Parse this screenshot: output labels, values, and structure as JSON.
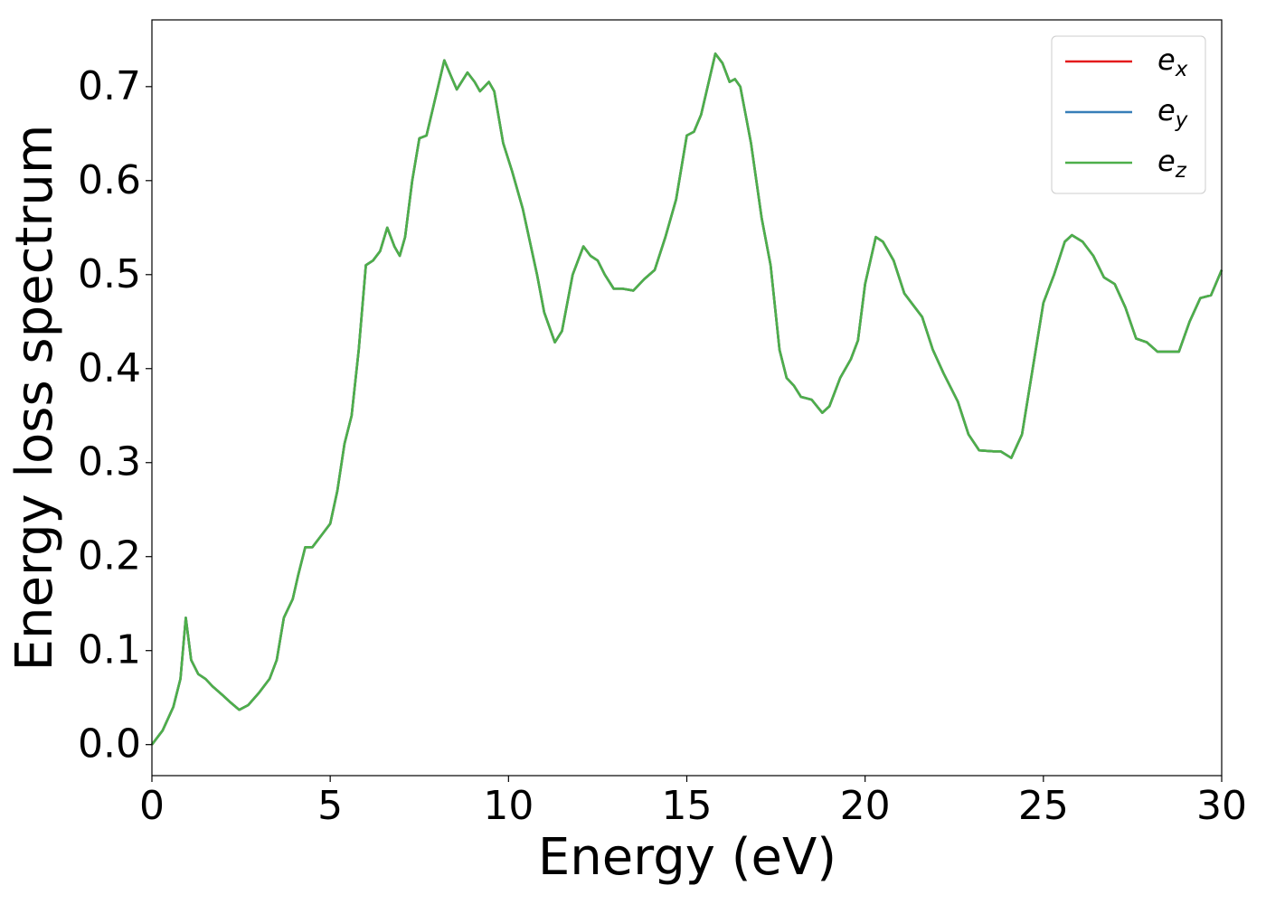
{
  "chart_data": {
    "type": "line",
    "xlabel": "Energy (eV)",
    "ylabel": "Energy loss spectrum",
    "x": [
      0,
      0.3,
      0.6,
      0.8,
      0.95,
      1.1,
      1.3,
      1.5,
      1.7,
      2.0,
      2.2,
      2.45,
      2.7,
      3.0,
      3.3,
      3.5,
      3.7,
      3.95,
      4.1,
      4.3,
      4.5,
      4.8,
      5.0,
      5.2,
      5.4,
      5.6,
      5.8,
      6.0,
      6.2,
      6.4,
      6.6,
      6.8,
      6.95,
      7.1,
      7.3,
      7.5,
      7.7,
      7.9,
      8.2,
      8.4,
      8.55,
      8.85,
      9.05,
      9.2,
      9.45,
      9.6,
      9.85,
      10.1,
      10.4,
      10.8,
      11.0,
      11.3,
      11.5,
      11.8,
      12.1,
      12.3,
      12.5,
      12.7,
      12.95,
      13.2,
      13.5,
      13.8,
      14.1,
      14.4,
      14.7,
      15.0,
      15.2,
      15.4,
      15.8,
      16.0,
      16.2,
      16.35,
      16.5,
      16.8,
      17.1,
      17.35,
      17.6,
      17.8,
      18.0,
      18.2,
      18.5,
      18.8,
      19.0,
      19.3,
      19.6,
      19.8,
      20.0,
      20.3,
      20.5,
      20.8,
      21.1,
      21.4,
      21.6,
      21.9,
      22.2,
      22.6,
      22.9,
      23.2,
      23.6,
      23.8,
      24.1,
      24.4,
      24.7,
      25.0,
      25.3,
      25.6,
      25.8,
      26.1,
      26.4,
      26.7,
      27.0,
      27.3,
      27.6,
      27.9,
      28.2,
      28.5,
      28.8,
      29.1,
      29.4,
      29.7,
      30.0
    ],
    "series": [
      {
        "name": "ex",
        "color": "#e41a1c",
        "values": [
          0,
          0.015,
          0.04,
          0.07,
          0.135,
          0.09,
          0.075,
          0.07,
          0.062,
          0.052,
          0.045,
          0.037,
          0.042,
          0.055,
          0.07,
          0.09,
          0.135,
          0.155,
          0.18,
          0.21,
          0.21,
          0.225,
          0.235,
          0.27,
          0.32,
          0.35,
          0.42,
          0.51,
          0.515,
          0.525,
          0.55,
          0.53,
          0.52,
          0.54,
          0.6,
          0.645,
          0.648,
          0.68,
          0.728,
          0.71,
          0.697,
          0.715,
          0.705,
          0.695,
          0.705,
          0.695,
          0.64,
          0.61,
          0.57,
          0.5,
          0.46,
          0.428,
          0.44,
          0.5,
          0.53,
          0.52,
          0.515,
          0.5,
          0.485,
          0.485,
          0.483,
          0.495,
          0.505,
          0.54,
          0.58,
          0.648,
          0.652,
          0.67,
          0.735,
          0.725,
          0.705,
          0.708,
          0.7,
          0.64,
          0.56,
          0.51,
          0.42,
          0.39,
          0.382,
          0.37,
          0.367,
          0.353,
          0.36,
          0.39,
          0.41,
          0.43,
          0.49,
          0.54,
          0.535,
          0.515,
          0.48,
          0.465,
          0.455,
          0.42,
          0.395,
          0.365,
          0.33,
          0.313,
          0.312,
          0.312,
          0.305,
          0.33,
          0.4,
          0.47,
          0.5,
          0.535,
          0.542,
          0.535,
          0.52,
          0.497,
          0.49,
          0.465,
          0.432,
          0.428,
          0.418,
          0.418,
          0.418,
          0.45,
          0.475,
          0.478,
          0.505
        ]
      },
      {
        "name": "ey",
        "color": "#377eb8",
        "values": [
          0,
          0.015,
          0.04,
          0.07,
          0.135,
          0.09,
          0.075,
          0.07,
          0.062,
          0.052,
          0.045,
          0.037,
          0.042,
          0.055,
          0.07,
          0.09,
          0.135,
          0.155,
          0.18,
          0.21,
          0.21,
          0.225,
          0.235,
          0.27,
          0.32,
          0.35,
          0.42,
          0.51,
          0.515,
          0.525,
          0.55,
          0.53,
          0.52,
          0.54,
          0.6,
          0.645,
          0.648,
          0.68,
          0.728,
          0.71,
          0.697,
          0.715,
          0.705,
          0.695,
          0.705,
          0.695,
          0.64,
          0.61,
          0.57,
          0.5,
          0.46,
          0.428,
          0.44,
          0.5,
          0.53,
          0.52,
          0.515,
          0.5,
          0.485,
          0.485,
          0.483,
          0.495,
          0.505,
          0.54,
          0.58,
          0.648,
          0.652,
          0.67,
          0.735,
          0.725,
          0.705,
          0.708,
          0.7,
          0.64,
          0.56,
          0.51,
          0.42,
          0.39,
          0.382,
          0.37,
          0.367,
          0.353,
          0.36,
          0.39,
          0.41,
          0.43,
          0.49,
          0.54,
          0.535,
          0.515,
          0.48,
          0.465,
          0.455,
          0.42,
          0.395,
          0.365,
          0.33,
          0.313,
          0.312,
          0.312,
          0.305,
          0.33,
          0.4,
          0.47,
          0.5,
          0.535,
          0.542,
          0.535,
          0.52,
          0.497,
          0.49,
          0.465,
          0.432,
          0.428,
          0.418,
          0.418,
          0.418,
          0.45,
          0.475,
          0.478,
          0.505
        ]
      },
      {
        "name": "ez",
        "color": "#4daf4a",
        "values": [
          0,
          0.015,
          0.04,
          0.07,
          0.135,
          0.09,
          0.075,
          0.07,
          0.062,
          0.052,
          0.045,
          0.037,
          0.042,
          0.055,
          0.07,
          0.09,
          0.135,
          0.155,
          0.18,
          0.21,
          0.21,
          0.225,
          0.235,
          0.27,
          0.32,
          0.35,
          0.42,
          0.51,
          0.515,
          0.525,
          0.55,
          0.53,
          0.52,
          0.54,
          0.6,
          0.645,
          0.648,
          0.68,
          0.728,
          0.71,
          0.697,
          0.715,
          0.705,
          0.695,
          0.705,
          0.695,
          0.64,
          0.61,
          0.57,
          0.5,
          0.46,
          0.428,
          0.44,
          0.5,
          0.53,
          0.52,
          0.515,
          0.5,
          0.485,
          0.485,
          0.483,
          0.495,
          0.505,
          0.54,
          0.58,
          0.648,
          0.652,
          0.67,
          0.735,
          0.725,
          0.705,
          0.708,
          0.7,
          0.64,
          0.56,
          0.51,
          0.42,
          0.39,
          0.382,
          0.37,
          0.367,
          0.353,
          0.36,
          0.39,
          0.41,
          0.43,
          0.49,
          0.54,
          0.535,
          0.515,
          0.48,
          0.465,
          0.455,
          0.42,
          0.395,
          0.365,
          0.33,
          0.313,
          0.312,
          0.312,
          0.305,
          0.33,
          0.4,
          0.47,
          0.5,
          0.535,
          0.542,
          0.535,
          0.52,
          0.497,
          0.49,
          0.465,
          0.432,
          0.428,
          0.418,
          0.418,
          0.418,
          0.45,
          0.475,
          0.478,
          0.505
        ]
      }
    ],
    "xlim": [
      0,
      30
    ],
    "xticks": [
      0,
      5,
      10,
      15,
      20,
      25,
      30
    ],
    "ylim": [
      -0.033,
      0.771
    ],
    "yticks": [
      {
        "value": 0,
        "label": "0.0"
      },
      0.1,
      0.2,
      0.3,
      0.4,
      0.5,
      0.6,
      0.7
    ],
    "grid": false,
    "legend": "upper right"
  }
}
